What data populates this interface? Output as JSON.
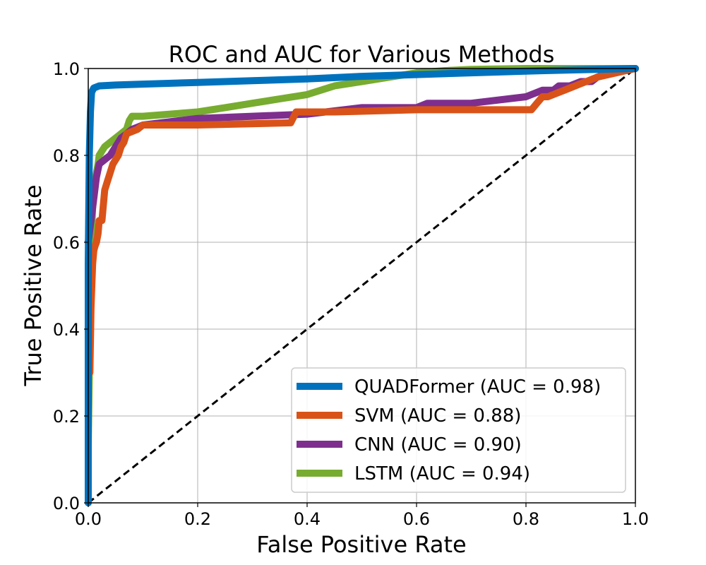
{
  "chart_data": {
    "type": "line",
    "title": "ROC and AUC for Various Methods",
    "xlabel": "False Positive Rate",
    "ylabel": "True Positive Rate",
    "xlim": [
      0.0,
      1.0
    ],
    "ylim": [
      0.0,
      1.0
    ],
    "xticks": [
      "0.0",
      "0.2",
      "0.4",
      "0.6",
      "0.8",
      "1.0"
    ],
    "yticks": [
      "0.0",
      "0.2",
      "0.4",
      "0.6",
      "0.8",
      "1.0"
    ],
    "grid": true,
    "legend_position": "lower-right",
    "series": [
      {
        "name": "QUADFormer (AUC = 0.98)",
        "color": "#0072BD",
        "x": [
          0.0,
          0.0,
          0.002,
          0.004,
          0.006,
          0.01,
          0.02,
          0.05,
          0.1,
          0.2,
          0.3,
          0.4,
          0.5,
          0.6,
          0.7,
          0.8,
          0.9,
          1.0
        ],
        "y": [
          0.0,
          0.55,
          0.8,
          0.9,
          0.945,
          0.955,
          0.96,
          0.962,
          0.964,
          0.968,
          0.972,
          0.976,
          0.982,
          0.986,
          0.99,
          0.994,
          0.997,
          1.0
        ]
      },
      {
        "name": "SVM (AUC = 0.88)",
        "color": "#D95319",
        "x": [
          0.0,
          0.003,
          0.005,
          0.008,
          0.01,
          0.012,
          0.015,
          0.018,
          0.02,
          0.025,
          0.03,
          0.035,
          0.04,
          0.045,
          0.05,
          0.055,
          0.06,
          0.065,
          0.07,
          0.09,
          0.1,
          0.2,
          0.37,
          0.38,
          0.45,
          0.6,
          0.81,
          0.82,
          0.83,
          0.84,
          0.85,
          0.86,
          0.87,
          0.88,
          0.89,
          0.9,
          0.91,
          0.92,
          0.93,
          1.0
        ],
        "y": [
          0.3,
          0.3,
          0.45,
          0.55,
          0.58,
          0.59,
          0.6,
          0.62,
          0.65,
          0.65,
          0.72,
          0.74,
          0.76,
          0.78,
          0.79,
          0.8,
          0.82,
          0.83,
          0.85,
          0.86,
          0.87,
          0.87,
          0.875,
          0.9,
          0.9,
          0.905,
          0.905,
          0.92,
          0.935,
          0.935,
          0.94,
          0.945,
          0.95,
          0.955,
          0.96,
          0.965,
          0.97,
          0.975,
          0.98,
          1.0
        ]
      },
      {
        "name": "CNN (AUC = 0.90)",
        "color": "#7E2F8E",
        "x": [
          0.0,
          0.004,
          0.01,
          0.015,
          0.02,
          0.03,
          0.04,
          0.05,
          0.06,
          0.07,
          0.08,
          0.1,
          0.2,
          0.4,
          0.5,
          0.6,
          0.62,
          0.7,
          0.8,
          0.81,
          0.83,
          0.85,
          0.86,
          0.88,
          0.9,
          0.92,
          0.93,
          0.95,
          0.97,
          1.0
        ],
        "y": [
          0.6,
          0.64,
          0.7,
          0.75,
          0.78,
          0.79,
          0.8,
          0.82,
          0.84,
          0.85,
          0.86,
          0.87,
          0.885,
          0.895,
          0.91,
          0.91,
          0.92,
          0.92,
          0.935,
          0.94,
          0.95,
          0.95,
          0.96,
          0.96,
          0.97,
          0.97,
          0.98,
          0.99,
          0.995,
          1.0
        ]
      },
      {
        "name": "LSTM (AUC = 0.94)",
        "color": "#77AC30",
        "x": [
          0.0,
          0.002,
          0.004,
          0.006,
          0.008,
          0.01,
          0.012,
          0.015,
          0.018,
          0.02,
          0.025,
          0.03,
          0.04,
          0.05,
          0.06,
          0.07,
          0.075,
          0.08,
          0.1,
          0.2,
          0.25,
          0.3,
          0.35,
          0.4,
          0.45,
          0.5,
          0.55,
          0.6,
          0.65,
          0.7,
          0.8,
          0.9,
          1.0
        ],
        "y": [
          0.13,
          0.3,
          0.55,
          0.62,
          0.68,
          0.72,
          0.74,
          0.76,
          0.78,
          0.8,
          0.81,
          0.82,
          0.83,
          0.84,
          0.85,
          0.86,
          0.88,
          0.89,
          0.89,
          0.9,
          0.91,
          0.92,
          0.93,
          0.94,
          0.96,
          0.97,
          0.98,
          0.99,
          0.995,
          0.998,
          1.0,
          1.0,
          1.0
        ]
      }
    ],
    "reference_line": {
      "x": [
        0.0,
        1.0
      ],
      "y": [
        0.0,
        1.0
      ],
      "style": "dashed",
      "color": "#000000"
    }
  }
}
